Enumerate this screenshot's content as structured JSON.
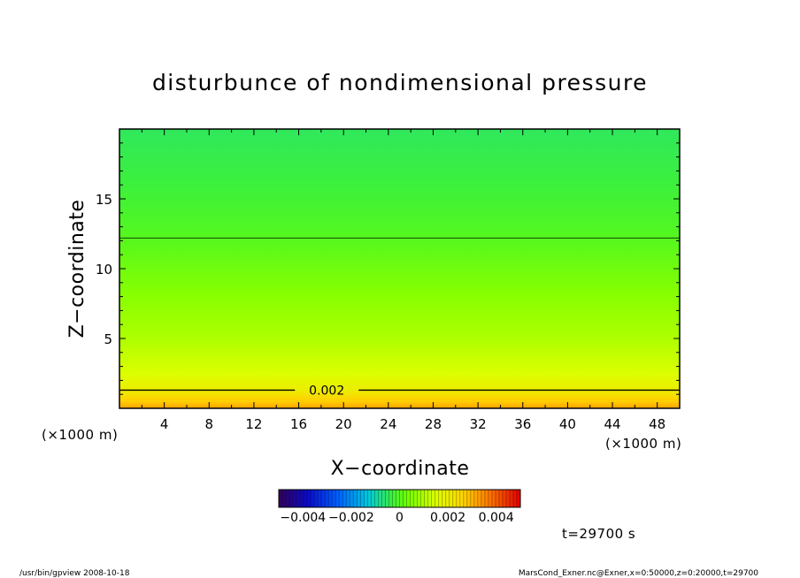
{
  "chart_data": {
    "type": "heatmap",
    "title": "disturbunce of nondimensional pressure",
    "xlabel": "X−coordinate",
    "ylabel": "Z−coordinate",
    "x_unit_left": "(×1000 m)",
    "x_unit_right": "(×1000 m)",
    "xlim": [
      0,
      50
    ],
    "ylim": [
      0,
      20
    ],
    "xticks": [
      4,
      8,
      12,
      16,
      20,
      24,
      28,
      32,
      36,
      40,
      44,
      48
    ],
    "yticks": [
      5,
      10,
      15
    ],
    "z_profile": [
      {
        "z": 0.0,
        "value": 0.0032
      },
      {
        "z": 0.5,
        "value": 0.0027
      },
      {
        "z": 1.3,
        "value": 0.002
      },
      {
        "z": 2.5,
        "value": 0.0015
      },
      {
        "z": 5.0,
        "value": 0.001
      },
      {
        "z": 8.0,
        "value": 0.0006
      },
      {
        "z": 12.2,
        "value": 0.0
      },
      {
        "z": 16.0,
        "value": -0.0003
      },
      {
        "z": 20.0,
        "value": -0.0005
      }
    ],
    "contours": [
      {
        "level": "0.002",
        "z": 1.3,
        "label": "0.002",
        "label_x": 18.5
      },
      {
        "level": "0",
        "z": 12.2,
        "label": ""
      }
    ],
    "colorbar": {
      "range": [
        -0.005,
        0.005
      ],
      "tick_labels": [
        "−0.004",
        "−0.002",
        "0",
        "0.002",
        "0.004"
      ],
      "tick_values": [
        -0.004,
        -0.002,
        0,
        0.002,
        0.004
      ]
    }
  },
  "annotations": {
    "time": "t=29700 s",
    "footer_left": "/usr/bin/gpview   2008-10-18",
    "footer_right": "MarsCond_Exner.nc@Exner,x=0:50000,z=0:20000,t=29700"
  }
}
